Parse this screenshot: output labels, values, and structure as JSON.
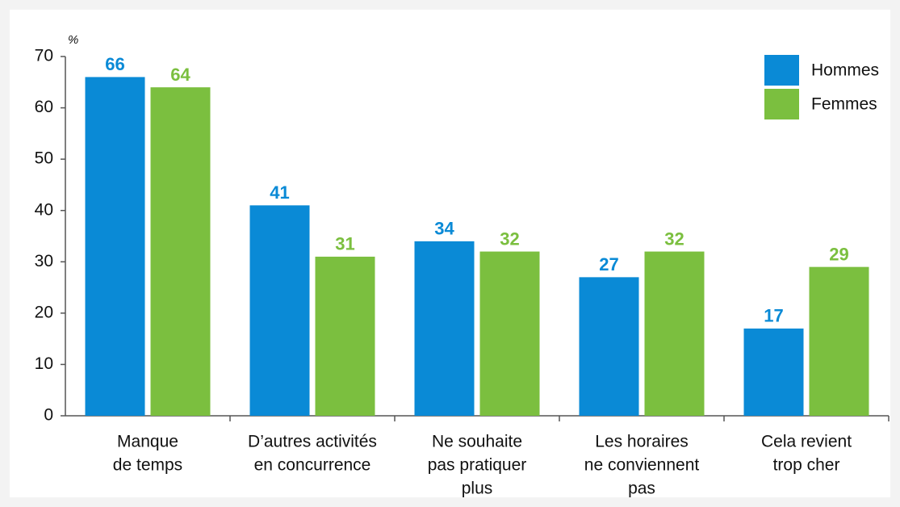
{
  "chart_data": {
    "type": "bar",
    "y_unit": "%",
    "categories": [
      [
        "Manque",
        "de temps"
      ],
      [
        "D’autres activités",
        "en concurrence"
      ],
      [
        "Ne souhaite",
        "pas pratiquer",
        "plus"
      ],
      [
        "Les horaires",
        "ne conviennent",
        "pas"
      ],
      [
        "Cela revient",
        "trop cher"
      ]
    ],
    "series": [
      {
        "name": "Hommes",
        "color": "#0a8ad6",
        "values": [
          66,
          41,
          34,
          27,
          17
        ]
      },
      {
        "name": "Femmes",
        "color": "#7bbf3f",
        "values": [
          64,
          31,
          32,
          32,
          29
        ]
      }
    ],
    "ylim": [
      0,
      70
    ],
    "yticks": [
      0,
      10,
      20,
      30,
      40,
      50,
      60,
      70
    ],
    "legend": "top-right"
  }
}
